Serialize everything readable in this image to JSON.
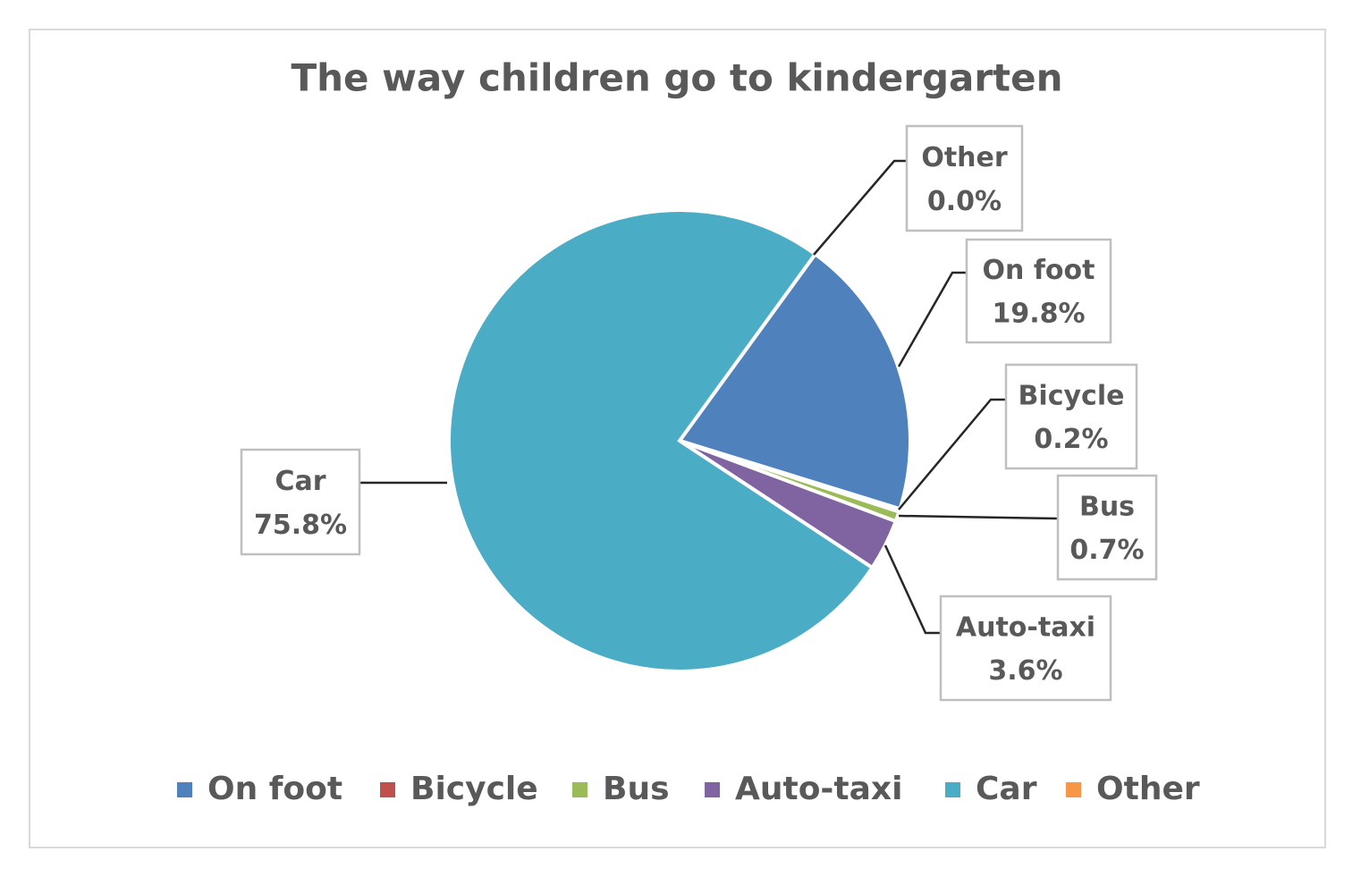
{
  "chart_data": {
    "type": "pie",
    "title": "The way children go to kindergarten",
    "categories": [
      "On foot",
      "Bicycle",
      "Bus",
      "Auto-taxi",
      "Car",
      "Other"
    ],
    "values": [
      19.8,
      0.2,
      0.7,
      3.6,
      75.8,
      0.0
    ],
    "value_labels": [
      "19.8%",
      "0.2%",
      "0.7%",
      "3.6%",
      "75.8%",
      "0.0%"
    ],
    "colors": [
      "#4f81bd",
      "#c0504d",
      "#9bbb59",
      "#8064a2",
      "#4bacc6",
      "#f79646"
    ],
    "legend": "bottom"
  }
}
